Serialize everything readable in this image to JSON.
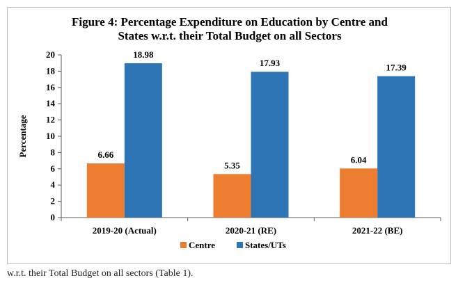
{
  "caption": "w.r.t. their Total Budget on all sectors (Table 1).",
  "chart_data": {
    "type": "bar",
    "title_lines": [
      "Figure 4: Percentage Expenditure on Education by Centre and",
      "States w.r.t. their Total Budget on all Sectors"
    ],
    "xlabel": "",
    "ylabel": "Percentage",
    "ylim": [
      0,
      20
    ],
    "yticks": [
      0,
      2,
      4,
      6,
      8,
      10,
      12,
      14,
      16,
      18,
      20
    ],
    "categories": [
      "2019-20 (Actual)",
      "2020-21 (RE)",
      "2021-22 (BE)"
    ],
    "series": [
      {
        "name": "Centre",
        "color": "#ED7D31",
        "values": [
          6.66,
          5.35,
          6.04
        ]
      },
      {
        "name": "States/UTs",
        "color": "#2E75B6",
        "values": [
          18.98,
          17.93,
          17.39
        ]
      }
    ],
    "legend_position": "bottom",
    "grid": false
  }
}
